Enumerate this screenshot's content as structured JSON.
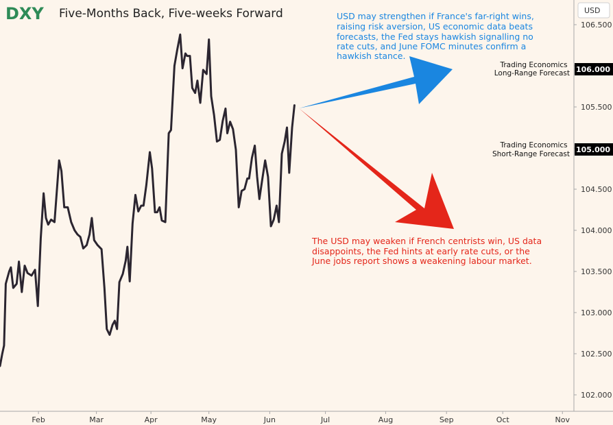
{
  "header": {
    "ticker": "DXY",
    "title": "Five-Months Back, Five-weeks Forward"
  },
  "axis": {
    "unit_label": "USD"
  },
  "annotations": {
    "up_lines": [
      "USD may strengthen if France's far-right wins,",
      "raising risk aversion, US economic data beats",
      "forecasts, the Fed stays hawkish signalling no",
      "rate cuts, and June FOMC minutes confirm a",
      "hawkish stance."
    ],
    "down_lines": [
      "The USD may weaken if French centrists win, US data",
      "disappoints, the Fed hints at early rate cuts, or the",
      "June jobs report shows a weakening labour market."
    ]
  },
  "forecasts": [
    {
      "line1": "Trading Economics",
      "line2": "Long-Range Forecast",
      "value": 106.0,
      "value_label": "106.000"
    },
    {
      "line1": "Trading Economics",
      "line2": "Short-Range Forecast",
      "value": 105.0,
      "value_label": "105.000"
    }
  ],
  "colors": {
    "background": "#fdf5ec",
    "price_line": "#2b2530",
    "up_arrow": "#1a86e0",
    "down_arrow": "#e4261a",
    "ticker": "#2e8b57",
    "badge": "#000000"
  },
  "chart_data": {
    "type": "line",
    "ylim": [
      101.8,
      106.8
    ],
    "xlim": [
      0,
      10
    ],
    "yticks": [
      102.0,
      102.5,
      103.0,
      103.5,
      104.0,
      104.5,
      105.0,
      105.5,
      106.0,
      106.5
    ],
    "ytick_labels": [
      "102.000",
      "102.500",
      "103.000",
      "103.500",
      "104.000",
      "104.500",
      "105.000",
      "105.500",
      "106.000",
      "106.500"
    ],
    "xticks": [
      {
        "label": "Feb",
        "pos": 0.67
      },
      {
        "label": "Mar",
        "pos": 1.68
      },
      {
        "label": "Apr",
        "pos": 2.63
      },
      {
        "label": "May",
        "pos": 3.64
      },
      {
        "label": "Jun",
        "pos": 4.7
      },
      {
        "label": "Jul",
        "pos": 5.67
      },
      {
        "label": "Aug",
        "pos": 6.72
      },
      {
        "label": "Sep",
        "pos": 7.78
      },
      {
        "label": "Oct",
        "pos": 8.76
      },
      {
        "label": "Nov",
        "pos": 9.8
      }
    ],
    "series": [
      {
        "values": [
          [
            0.0,
            102.35
          ],
          [
            0.04,
            102.5
          ],
          [
            0.07,
            102.6
          ],
          [
            0.1,
            103.35
          ],
          [
            0.16,
            103.5
          ],
          [
            0.19,
            103.55
          ],
          [
            0.23,
            103.3
          ],
          [
            0.29,
            103.35
          ],
          [
            0.33,
            103.62
          ],
          [
            0.38,
            103.25
          ],
          [
            0.43,
            103.57
          ],
          [
            0.48,
            103.48
          ],
          [
            0.55,
            103.45
          ],
          [
            0.61,
            103.52
          ],
          [
            0.66,
            103.08
          ],
          [
            0.71,
            103.9
          ],
          [
            0.76,
            104.45
          ],
          [
            0.8,
            104.15
          ],
          [
            0.84,
            104.07
          ],
          [
            0.89,
            104.13
          ],
          [
            0.95,
            104.1
          ],
          [
            1.03,
            104.85
          ],
          [
            1.07,
            104.72
          ],
          [
            1.12,
            104.28
          ],
          [
            1.18,
            104.28
          ],
          [
            1.24,
            104.1
          ],
          [
            1.3,
            104.0
          ],
          [
            1.35,
            103.95
          ],
          [
            1.4,
            103.92
          ],
          [
            1.45,
            103.78
          ],
          [
            1.51,
            103.82
          ],
          [
            1.56,
            103.95
          ],
          [
            1.6,
            104.15
          ],
          [
            1.64,
            103.88
          ],
          [
            1.7,
            103.82
          ],
          [
            1.77,
            103.77
          ],
          [
            1.82,
            103.3
          ],
          [
            1.86,
            102.8
          ],
          [
            1.91,
            102.73
          ],
          [
            1.96,
            102.85
          ],
          [
            2.0,
            102.9
          ],
          [
            2.04,
            102.8
          ],
          [
            2.08,
            103.37
          ],
          [
            2.14,
            103.47
          ],
          [
            2.19,
            103.63
          ],
          [
            2.22,
            103.8
          ],
          [
            2.26,
            103.38
          ],
          [
            2.31,
            104.08
          ],
          [
            2.36,
            104.43
          ],
          [
            2.41,
            104.23
          ],
          [
            2.46,
            104.3
          ],
          [
            2.5,
            104.3
          ],
          [
            2.55,
            104.55
          ],
          [
            2.61,
            104.95
          ],
          [
            2.65,
            104.75
          ],
          [
            2.7,
            104.22
          ],
          [
            2.74,
            104.22
          ],
          [
            2.78,
            104.28
          ],
          [
            2.82,
            104.12
          ],
          [
            2.88,
            104.1
          ],
          [
            2.94,
            105.18
          ],
          [
            2.98,
            105.22
          ],
          [
            3.04,
            106.0
          ],
          [
            3.09,
            106.2
          ],
          [
            3.14,
            106.38
          ],
          [
            3.18,
            105.97
          ],
          [
            3.23,
            106.15
          ],
          [
            3.26,
            106.12
          ],
          [
            3.31,
            106.12
          ],
          [
            3.35,
            105.73
          ],
          [
            3.4,
            105.67
          ],
          [
            3.44,
            105.82
          ],
          [
            3.49,
            105.55
          ],
          [
            3.54,
            105.95
          ],
          [
            3.6,
            105.9
          ],
          [
            3.64,
            106.32
          ],
          [
            3.68,
            105.63
          ],
          [
            3.73,
            105.4
          ],
          [
            3.78,
            105.08
          ],
          [
            3.83,
            105.1
          ],
          [
            3.88,
            105.33
          ],
          [
            3.93,
            105.48
          ],
          [
            3.96,
            105.18
          ],
          [
            4.01,
            105.32
          ],
          [
            4.06,
            105.23
          ],
          [
            4.11,
            104.98
          ],
          [
            4.16,
            104.28
          ],
          [
            4.21,
            104.48
          ],
          [
            4.26,
            104.5
          ],
          [
            4.31,
            104.63
          ],
          [
            4.34,
            104.63
          ],
          [
            4.39,
            104.88
          ],
          [
            4.44,
            105.03
          ],
          [
            4.48,
            104.65
          ],
          [
            4.52,
            104.38
          ],
          [
            4.57,
            104.62
          ],
          [
            4.62,
            104.85
          ],
          [
            4.67,
            104.65
          ],
          [
            4.72,
            104.05
          ],
          [
            4.77,
            104.13
          ],
          [
            4.82,
            104.3
          ],
          [
            4.86,
            104.1
          ],
          [
            4.91,
            104.93
          ],
          [
            4.96,
            105.08
          ],
          [
            5.0,
            105.25
          ],
          [
            5.04,
            104.7
          ],
          [
            5.09,
            105.25
          ],
          [
            5.13,
            105.52
          ]
        ]
      }
    ]
  }
}
